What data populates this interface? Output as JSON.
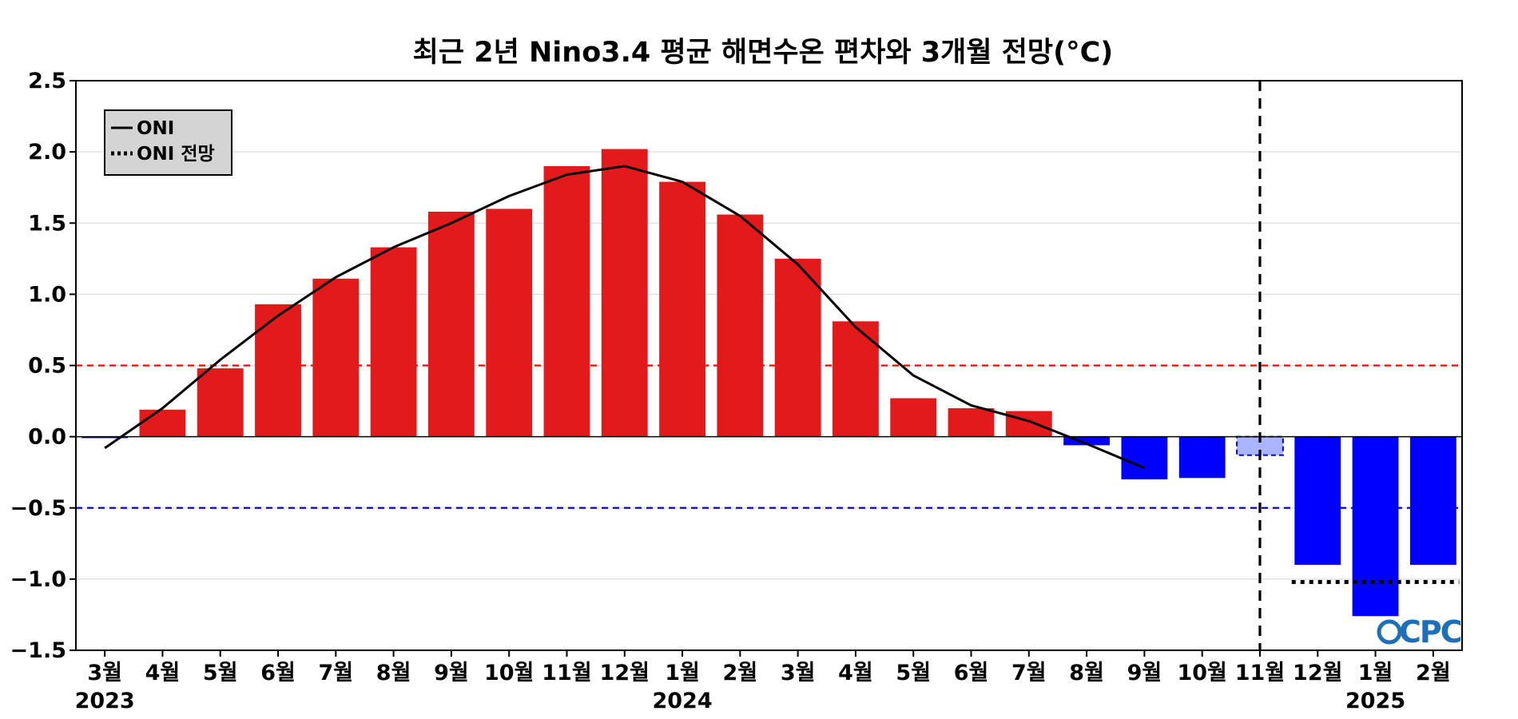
{
  "chart_data": {
    "type": "bar",
    "title": "최근 2년 Nino3.4 평균 해면수온 편차와 3개월 전망(°C)",
    "categories": [
      "3월",
      "4월",
      "5월",
      "6월",
      "7월",
      "8월",
      "9월",
      "10월",
      "11월",
      "12월",
      "1월",
      "2월",
      "3월",
      "4월",
      "5월",
      "6월",
      "7월",
      "8월",
      "9월",
      "10월",
      "11월",
      "12월",
      "1월",
      "2월"
    ],
    "year_labels": [
      {
        "text": "2023",
        "category_index": 0
      },
      {
        "text": "2024",
        "category_index": 10
      },
      {
        "text": "2025",
        "category_index": 22
      }
    ],
    "series": [
      {
        "kind": "monthly_anomaly_bars",
        "values": [
          -0.01,
          0.19,
          0.48,
          0.93,
          1.11,
          1.33,
          1.58,
          1.6,
          1.9,
          2.02,
          1.79,
          1.56,
          1.25,
          0.81,
          0.27,
          0.2,
          0.18,
          -0.06,
          -0.3,
          -0.29,
          -0.13,
          -0.9,
          -1.26,
          -0.9
        ],
        "forecast_from_index": 20
      },
      {
        "name": "ONI",
        "kind": "line",
        "values": [
          -0.08,
          0.2,
          0.54,
          0.85,
          1.12,
          1.33,
          1.5,
          1.69,
          1.84,
          1.9,
          1.79,
          1.55,
          1.21,
          0.77,
          0.43,
          0.22,
          0.11,
          -0.05,
          -0.22,
          null,
          null,
          null,
          null,
          null
        ]
      },
      {
        "name": "ONI 전망",
        "kind": "dotted_line",
        "values": [
          null,
          null,
          null,
          null,
          null,
          null,
          null,
          null,
          null,
          null,
          null,
          null,
          null,
          null,
          null,
          null,
          null,
          null,
          null,
          null,
          null,
          -1.02,
          -1.02,
          -1.02
        ]
      }
    ],
    "ylim": [
      -1.5,
      2.5
    ],
    "yticks": [
      2.5,
      2.0,
      1.5,
      1.0,
      0.5,
      0.0,
      -0.5,
      -1.0,
      -1.5
    ],
    "ytick_labels": [
      "2.5",
      "2.0",
      "1.5",
      "1.0",
      "0.5",
      "0.0",
      "−0.5",
      "−1.0",
      "−1.5"
    ],
    "threshold_lines": [
      {
        "value": 0.5,
        "color": "#ff0000",
        "style": "dashed"
      },
      {
        "value": -0.5,
        "color": "#0000dd",
        "style": "dashed"
      }
    ],
    "forecast_divider": {
      "between_category_index": 20,
      "style": "dashed",
      "color": "#000000"
    },
    "grid": true,
    "legend": {
      "position": "top-left",
      "entries": [
        "ONI",
        "ONI 전망"
      ]
    },
    "colors": {
      "positive": "#e31a1c",
      "negative": "#0000ff",
      "forecast_light": "#aab4ff",
      "line": "#000000",
      "grid": "#dddddd"
    },
    "logo": "CPC"
  }
}
